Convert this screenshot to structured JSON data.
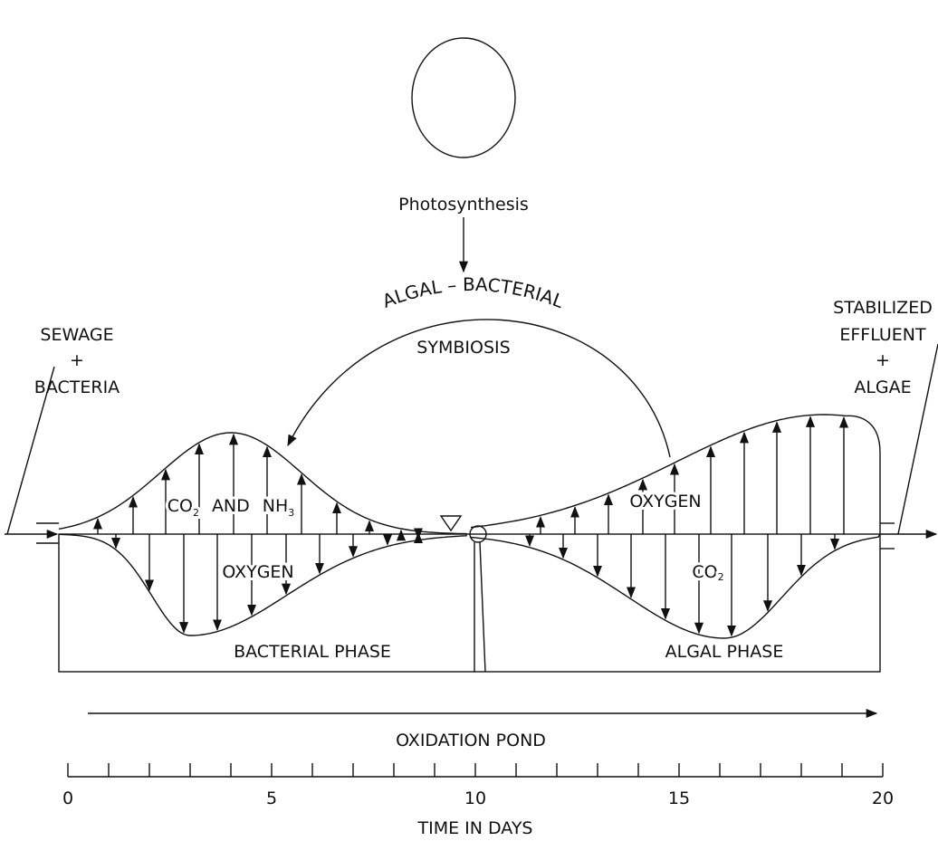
{
  "sun_label": "Photosynthesis",
  "symbiosis": {
    "arc_label": "ALGAL – BACTERIAL",
    "label": "SYMBIOSIS"
  },
  "inlet": {
    "lines": [
      "SEWAGE",
      "+",
      "BACTERIA"
    ]
  },
  "outlet": {
    "lines": [
      "STABILIZED",
      "EFFLUENT",
      "+",
      "ALGAE"
    ]
  },
  "bacterial_zone": {
    "upper": [
      "CO",
      "2",
      "AND",
      "NH",
      "3"
    ],
    "lower": "OXYGEN",
    "phase": "BACTERIAL  PHASE"
  },
  "algal_zone": {
    "upper": "OXYGEN",
    "lower": [
      "CO",
      "2"
    ],
    "phase": "ALGAL  PHASE"
  },
  "pond_label": "OXIDATION  POND",
  "time_axis": {
    "tick_labels": [
      "0",
      "5",
      "10",
      "15",
      "20"
    ],
    "title": "TIME    IN    DAYS"
  }
}
